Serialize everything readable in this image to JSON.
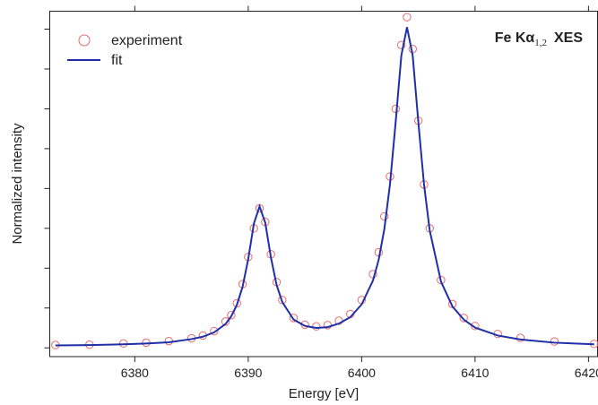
{
  "chart_data": {
    "type": "scatter-line",
    "xlabel": "Energy [eV]",
    "ylabel": "Normalized intensity",
    "annotation": {
      "main": "Fe Kα",
      "sub": "1,2",
      "suffix": "XES"
    },
    "xlim": [
      6372.5,
      6420.8
    ],
    "xticks": [
      6380,
      6390,
      6400,
      6410,
      6420
    ],
    "ylim": [
      -0.022,
      0.845
    ],
    "yticks": [
      0,
      0.1,
      0.2,
      0.3,
      0.4,
      0.5,
      0.6,
      0.7,
      0.8
    ],
    "legend": "upper left",
    "series": [
      {
        "name": "experiment",
        "color": "#e8696b",
        "mode": "markers",
        "x": [
          6373,
          6376,
          6379,
          6381,
          6383,
          6385,
          6386,
          6387,
          6388,
          6388.5,
          6389,
          6389.5,
          6390,
          6390.5,
          6391,
          6391.5,
          6392,
          6392.5,
          6393,
          6394,
          6395,
          6396,
          6397,
          6398,
          6399,
          6400,
          6401,
          6401.5,
          6402,
          6402.5,
          6403,
          6403.5,
          6404,
          6404.5,
          6405,
          6405.5,
          6406,
          6407,
          6408,
          6409,
          6410,
          6412,
          6414,
          6417,
          6420.5
        ],
        "values": [
          0.007,
          0.008,
          0.011,
          0.013,
          0.017,
          0.024,
          0.031,
          0.042,
          0.066,
          0.082,
          0.112,
          0.16,
          0.228,
          0.3,
          0.35,
          0.316,
          0.235,
          0.165,
          0.12,
          0.075,
          0.058,
          0.054,
          0.057,
          0.068,
          0.085,
          0.12,
          0.185,
          0.24,
          0.33,
          0.43,
          0.6,
          0.76,
          0.83,
          0.75,
          0.57,
          0.41,
          0.3,
          0.17,
          0.11,
          0.075,
          0.055,
          0.035,
          0.025,
          0.016,
          0.01
        ]
      },
      {
        "name": "fit",
        "color": "#1f2fa8",
        "mode": "line",
        "x": [
          6373,
          6376,
          6379,
          6381,
          6383,
          6385,
          6386,
          6387,
          6388,
          6388.5,
          6389,
          6389.5,
          6390,
          6390.5,
          6391,
          6391.5,
          6392,
          6392.5,
          6393,
          6394,
          6395,
          6396,
          6397,
          6398,
          6399,
          6400,
          6401,
          6401.5,
          6402,
          6402.5,
          6403,
          6403.5,
          6404,
          6404.5,
          6405,
          6405.5,
          6406,
          6407,
          6408,
          6409,
          6410,
          6412,
          6414,
          6417,
          6420.5
        ],
        "values": [
          0.006,
          0.007,
          0.009,
          0.011,
          0.014,
          0.022,
          0.028,
          0.039,
          0.06,
          0.079,
          0.108,
          0.153,
          0.223,
          0.312,
          0.355,
          0.314,
          0.227,
          0.158,
          0.115,
          0.071,
          0.055,
          0.05,
          0.052,
          0.061,
          0.077,
          0.109,
          0.169,
          0.221,
          0.298,
          0.411,
          0.567,
          0.734,
          0.805,
          0.734,
          0.566,
          0.41,
          0.295,
          0.166,
          0.104,
          0.071,
          0.051,
          0.031,
          0.021,
          0.013,
          0.009
        ]
      }
    ]
  }
}
